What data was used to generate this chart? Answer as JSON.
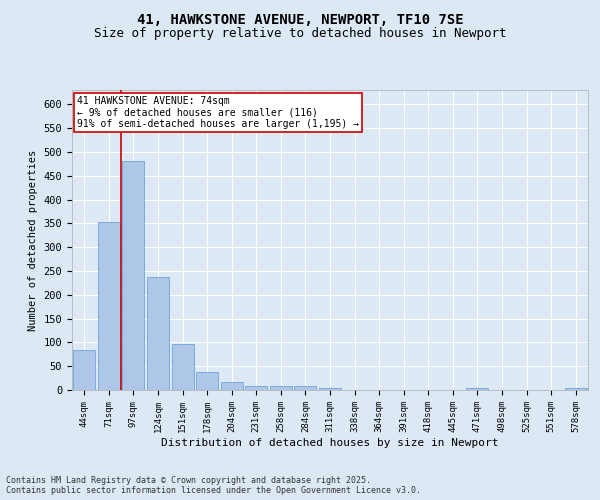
{
  "title1": "41, HAWKSTONE AVENUE, NEWPORT, TF10 7SE",
  "title2": "Size of property relative to detached houses in Newport",
  "xlabel": "Distribution of detached houses by size in Newport",
  "ylabel": "Number of detached properties",
  "categories": [
    "44sqm",
    "71sqm",
    "97sqm",
    "124sqm",
    "151sqm",
    "178sqm",
    "204sqm",
    "231sqm",
    "258sqm",
    "284sqm",
    "311sqm",
    "338sqm",
    "364sqm",
    "391sqm",
    "418sqm",
    "445sqm",
    "471sqm",
    "498sqm",
    "525sqm",
    "551sqm",
    "578sqm"
  ],
  "values": [
    85,
    352,
    480,
    237,
    96,
    38,
    17,
    8,
    8,
    8,
    5,
    0,
    0,
    0,
    0,
    0,
    5,
    0,
    0,
    0,
    5
  ],
  "bar_color": "#aec6e8",
  "bar_edge_color": "#5b9bd5",
  "vline_color": "#cc0000",
  "annotation_text": "41 HAWKSTONE AVENUE: 74sqm\n← 9% of detached houses are smaller (116)\n91% of semi-detached houses are larger (1,195) →",
  "annotation_box_color": "#ffffff",
  "annotation_box_edge_color": "#cc0000",
  "ylim": [
    0,
    630
  ],
  "yticks": [
    0,
    50,
    100,
    150,
    200,
    250,
    300,
    350,
    400,
    450,
    500,
    550,
    600
  ],
  "background_color": "#dce9f5",
  "plot_bg_color": "#dce9f5",
  "footer_line1": "Contains HM Land Registry data © Crown copyright and database right 2025.",
  "footer_line2": "Contains public sector information licensed under the Open Government Licence v3.0.",
  "title_fontsize": 10,
  "subtitle_fontsize": 9,
  "annotation_fontsize": 7,
  "footer_fontsize": 6
}
